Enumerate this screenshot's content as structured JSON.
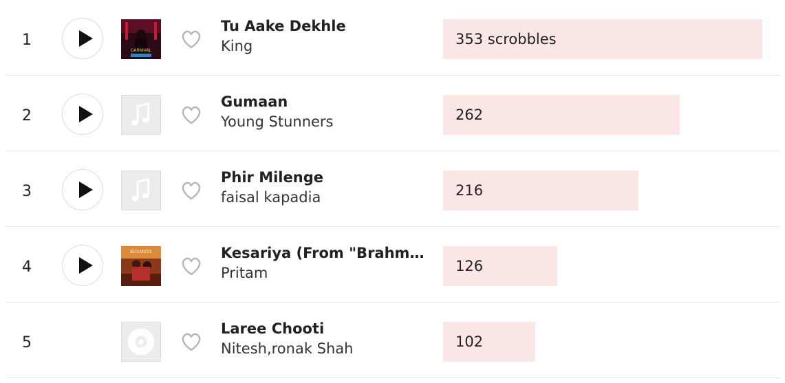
{
  "colors": {
    "bar_fill": "#fbe6e6",
    "divider": "#e6e6e6",
    "placeholder": "#ececec"
  },
  "max_scrobbles": 353,
  "tracks": [
    {
      "rank": "1",
      "title": "Tu Aake Dekhle",
      "artist": "King",
      "scrobbles": 353,
      "scrobbles_label": "353 scrobbles",
      "has_play": true,
      "artwork": "album-cover-carnival",
      "artwork_text": "CARNIVAL"
    },
    {
      "rank": "2",
      "title": "Gumaan",
      "artist": "Young Stunners",
      "scrobbles": 262,
      "scrobbles_label": "262",
      "has_play": true,
      "artwork": "music-note-icon"
    },
    {
      "rank": "3",
      "title": "Phir Milenge",
      "artist": "faisal kapadia",
      "scrobbles": 216,
      "scrobbles_label": "216",
      "has_play": true,
      "artwork": "music-note-icon"
    },
    {
      "rank": "4",
      "title": "Kesariya (From \"Brahma...",
      "artist": "Pritam",
      "scrobbles": 126,
      "scrobbles_label": "126",
      "has_play": true,
      "artwork": "album-cover-kesariya",
      "artwork_text": "KESARIYA"
    },
    {
      "rank": "5",
      "title": "Laree Chooti",
      "artist": "Nitesh,ronak Shah",
      "scrobbles": 102,
      "scrobbles_label": "102",
      "has_play": false,
      "artwork": "disc-icon"
    }
  ]
}
